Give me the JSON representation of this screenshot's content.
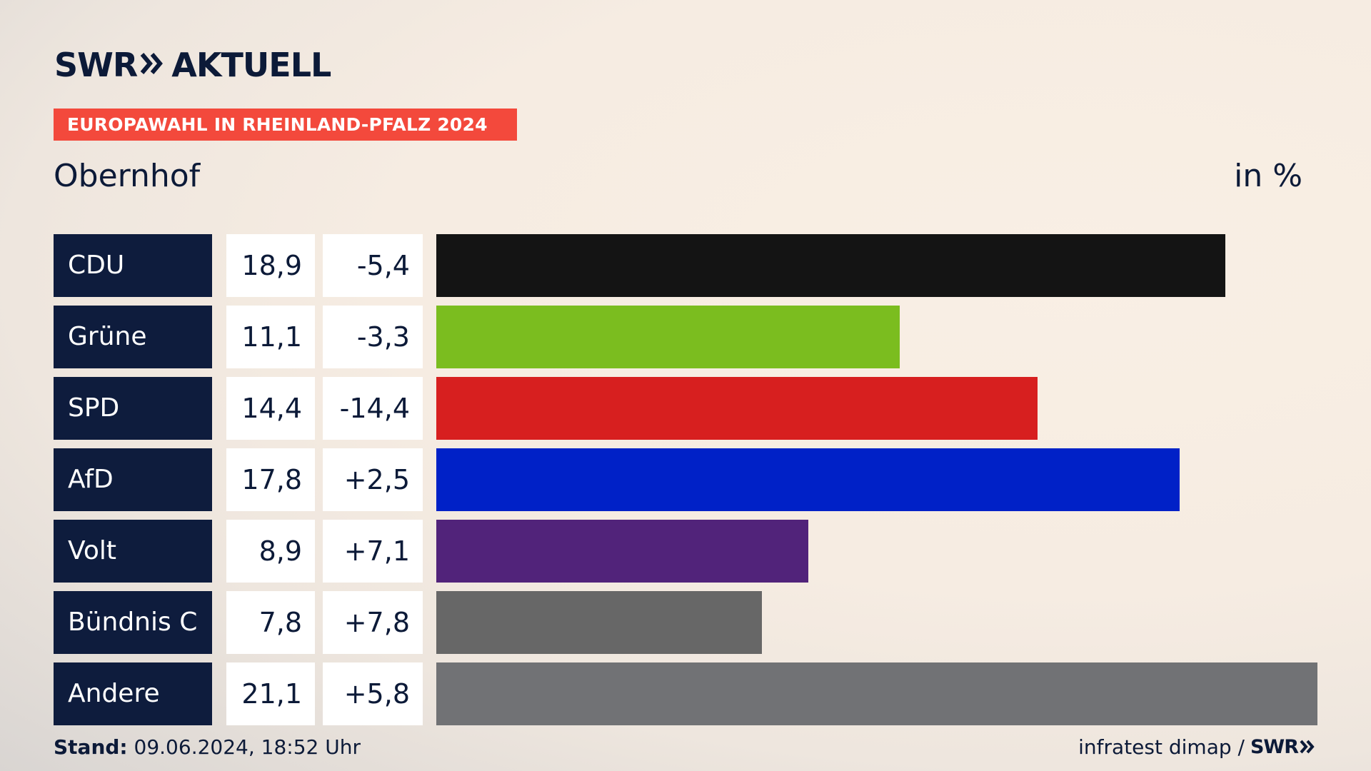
{
  "header": {
    "logo_swr": "SWR",
    "logo_aktuell": "AKTUELL",
    "badge": "EUROPAWAHL IN RHEINLAND-PFALZ 2024",
    "region": "Obernhof",
    "unit": "in %"
  },
  "footer": {
    "stand_label": "Stand:",
    "stand_value": "09.06.2024, 18:52 Uhr",
    "source": "infratest dimap /",
    "source_logo": "SWR"
  },
  "colors": {
    "background": "#f6ece2",
    "navy": "#0e1c3d",
    "badge": "#f3493c"
  },
  "chart_data": {
    "type": "bar",
    "orientation": "horizontal",
    "categories": [
      "CDU",
      "Grüne",
      "SPD",
      "AfD",
      "Volt",
      "Bündnis C",
      "Andere"
    ],
    "values": [
      18.9,
      11.1,
      14.4,
      17.8,
      8.9,
      7.8,
      21.1
    ],
    "value_labels": [
      "18,9",
      "11,1",
      "14,4",
      "17,8",
      "8,9",
      "7,8",
      "21,1"
    ],
    "diff_labels": [
      "-5,4",
      "-3,3",
      "-14,4",
      "+2,5",
      "+7,1",
      "+7,8",
      "+5,8"
    ],
    "diffs": [
      -5.4,
      -3.3,
      -14.4,
      2.5,
      7.1,
      7.8,
      5.8
    ],
    "colors": [
      "#141414",
      "#7bbd1f",
      "#d71f1f",
      "#0021c7",
      "#51237a",
      "#676767",
      "#717275"
    ],
    "xlim": [
      0,
      21.1
    ]
  }
}
